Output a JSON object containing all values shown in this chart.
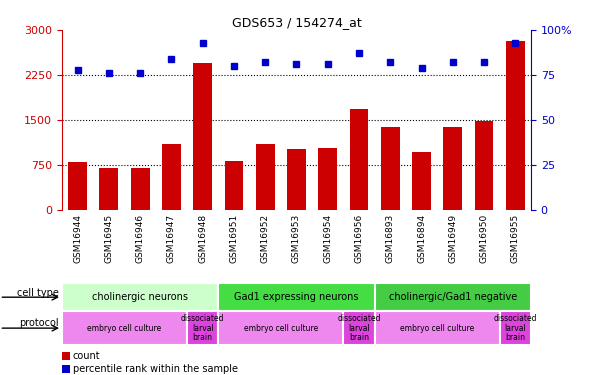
{
  "title": "GDS653 / 154274_at",
  "samples": [
    "GSM16944",
    "GSM16945",
    "GSM16946",
    "GSM16947",
    "GSM16948",
    "GSM16951",
    "GSM16952",
    "GSM16953",
    "GSM16954",
    "GSM16956",
    "GSM16893",
    "GSM16894",
    "GSM16949",
    "GSM16950",
    "GSM16955"
  ],
  "counts": [
    800,
    700,
    700,
    1100,
    2450,
    820,
    1100,
    1020,
    1040,
    1680,
    1390,
    970,
    1390,
    1480,
    2820
  ],
  "percentiles": [
    78,
    76,
    76,
    84,
    93,
    80,
    82,
    81,
    81,
    87,
    82,
    79,
    82,
    82,
    93
  ],
  "bar_color": "#cc0000",
  "dot_color": "#0000cc",
  "cell_type_groups": [
    {
      "label": "cholinergic neurons",
      "start": 0,
      "end": 4,
      "color": "#ccffcc"
    },
    {
      "label": "Gad1 expressing neurons",
      "start": 5,
      "end": 9,
      "color": "#44dd44"
    },
    {
      "label": "cholinergic/Gad1 negative",
      "start": 10,
      "end": 14,
      "color": "#44cc44"
    }
  ],
  "protocol_groups": [
    {
      "label": "embryo cell culture",
      "start": 0,
      "end": 3,
      "color": "#ee88ee"
    },
    {
      "label": "dissociated\nlarval\nbrain",
      "start": 4,
      "end": 4,
      "color": "#dd44dd"
    },
    {
      "label": "embryo cell culture",
      "start": 5,
      "end": 8,
      "color": "#ee88ee"
    },
    {
      "label": "dissociated\nlarval\nbrain",
      "start": 9,
      "end": 9,
      "color": "#dd44dd"
    },
    {
      "label": "embryo cell culture",
      "start": 10,
      "end": 13,
      "color": "#ee88ee"
    },
    {
      "label": "dissociated\nlarval\nbrain",
      "start": 14,
      "end": 14,
      "color": "#dd44dd"
    }
  ],
  "ylim_left": [
    0,
    3000
  ],
  "ylim_right": [
    0,
    100
  ],
  "yticks_left": [
    0,
    750,
    1500,
    2250,
    3000
  ],
  "yticks_right": [
    0,
    25,
    50,
    75,
    100
  ],
  "grid_values": [
    750,
    1500,
    2250
  ],
  "left_axis_color": "#cc0000",
  "right_axis_color": "#0000cc",
  "xtick_bg_color": "#cccccc"
}
